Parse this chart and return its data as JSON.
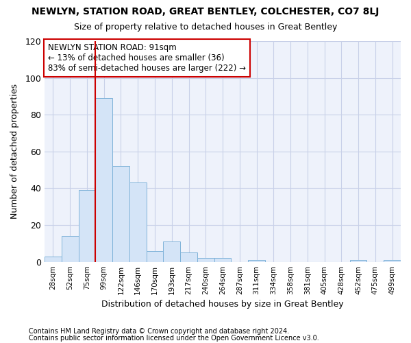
{
  "title": "NEWLYN, STATION ROAD, GREAT BENTLEY, COLCHESTER, CO7 8LJ",
  "subtitle": "Size of property relative to detached houses in Great Bentley",
  "xlabel": "Distribution of detached houses by size in Great Bentley",
  "ylabel": "Number of detached properties",
  "categories": [
    "28sqm",
    "52sqm",
    "75sqm",
    "99sqm",
    "122sqm",
    "146sqm",
    "170sqm",
    "193sqm",
    "217sqm",
    "240sqm",
    "264sqm",
    "287sqm",
    "311sqm",
    "334sqm",
    "358sqm",
    "381sqm",
    "405sqm",
    "428sqm",
    "452sqm",
    "475sqm",
    "499sqm"
  ],
  "values": [
    3,
    14,
    39,
    89,
    52,
    43,
    6,
    11,
    5,
    2,
    2,
    0,
    1,
    0,
    0,
    0,
    0,
    0,
    1,
    0,
    1
  ],
  "bar_color": "#d4e4f7",
  "bar_edge_color": "#7fb3d9",
  "vline_x_idx": 3,
  "vline_color": "#cc0000",
  "annotation_text": "NEWLYN STATION ROAD: 91sqm\n← 13% of detached houses are smaller (36)\n83% of semi-detached houses are larger (222) →",
  "annotation_box_color": "white",
  "annotation_box_edge": "#cc0000",
  "ylim": [
    0,
    120
  ],
  "yticks": [
    0,
    20,
    40,
    60,
    80,
    100,
    120
  ],
  "footer1": "Contains HM Land Registry data © Crown copyright and database right 2024.",
  "footer2": "Contains public sector information licensed under the Open Government Licence v3.0.",
  "bg_color": "#ffffff",
  "plot_bg_color": "#eef2fb",
  "grid_color": "#c8d0e8"
}
